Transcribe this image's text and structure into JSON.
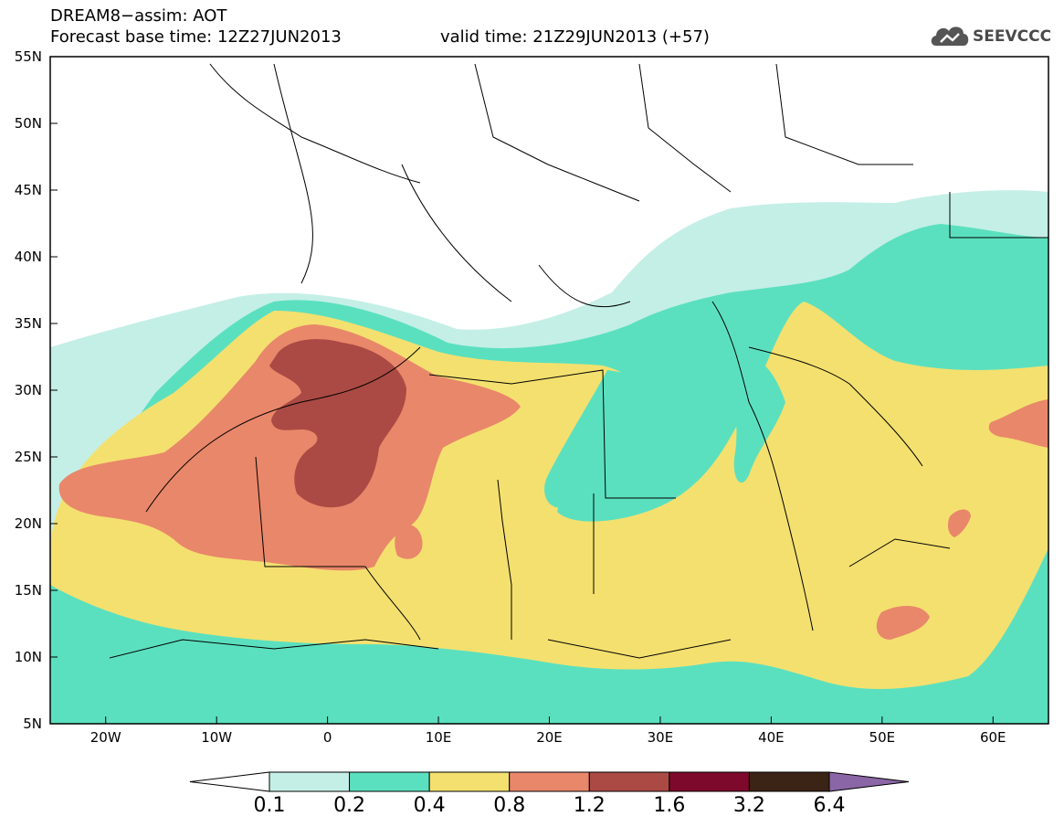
{
  "header": {
    "title": "DREAM8−assim: AOT",
    "base_time": "Forecast base time: 12Z27JUN2013",
    "valid_time": "valid time: 21Z29JUN2013 (+57)",
    "logo_text": "SEEVCCC",
    "logo_icon": "cloud-icon"
  },
  "axes": {
    "lat_labels": [
      "55N",
      "50N",
      "45N",
      "40N",
      "35N",
      "30N",
      "25N",
      "20N",
      "15N",
      "10N",
      "5N"
    ],
    "lon_labels": [
      "20W",
      "10W",
      "0",
      "10E",
      "20E",
      "30E",
      "40E",
      "50E",
      "60E"
    ],
    "lat_range": [
      5,
      55
    ],
    "lon_range": [
      -25,
      65
    ]
  },
  "colorbar": {
    "labels": [
      "0.1",
      "0.2",
      "0.4",
      "0.8",
      "1.2",
      "1.6",
      "3.2",
      "6.4"
    ],
    "colors": [
      "#ffffff",
      "#c4efe6",
      "#5be0bf",
      "#f4e06f",
      "#e9876a",
      "#ab4a44",
      "#7d0a2c",
      "#3b2316",
      "#8b66a6"
    ]
  },
  "colors": {
    "background": "#ffffff",
    "border_lines": "#000000"
  }
}
